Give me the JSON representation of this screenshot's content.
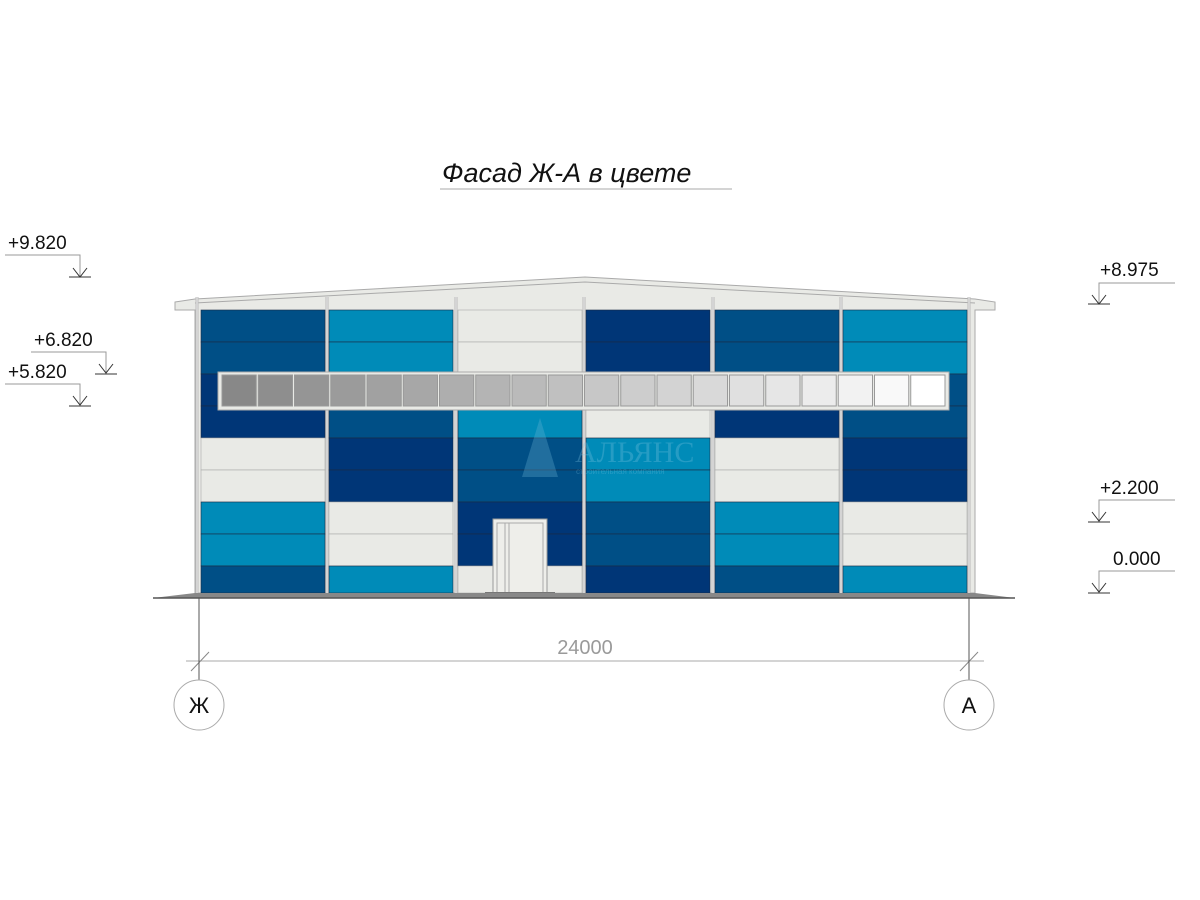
{
  "title": "Фасад Ж-А в цвете",
  "levels": {
    "left": [
      "+9.820",
      "+6.820",
      "+5.820"
    ],
    "right": [
      "+8.975",
      "+2.200",
      "0.000"
    ]
  },
  "dimension": "24000",
  "axes": [
    "Ж",
    "А"
  ],
  "watermark": {
    "name": "АЛЬЯНС",
    "subtitle": "строительная компания"
  },
  "colors": {
    "A": "#004f86",
    "B": "#008bb8",
    "C": "#003677",
    "W": "#e9eae6"
  },
  "panel_pattern": [
    [
      "A",
      "B",
      "W",
      "C",
      "A",
      "B"
    ],
    [
      "A",
      "B",
      "W",
      "C",
      "A",
      "B"
    ],
    [
      "C",
      "A",
      "B",
      "W",
      "C",
      "A"
    ],
    [
      "C",
      "A",
      "B",
      "W",
      "C",
      "A"
    ],
    [
      "W",
      "C",
      "A",
      "B",
      "W",
      "C"
    ],
    [
      "W",
      "C",
      "A",
      "B",
      "W",
      "C"
    ],
    [
      "B",
      "W",
      "C",
      "A",
      "B",
      "W"
    ],
    [
      "B",
      "W",
      "C",
      "A",
      "B",
      "W"
    ],
    [
      "A",
      "B",
      "W",
      "C",
      "A",
      "B"
    ]
  ],
  "window_panes": 20
}
